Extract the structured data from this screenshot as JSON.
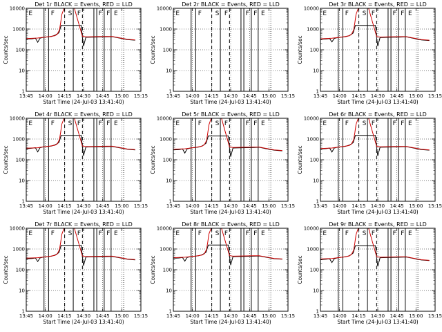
{
  "figure": {
    "shared": {
      "xlabel": "Start Time (24-Jul-03 13:41:40)",
      "ylabel": "Counts/sec",
      "x_ticks": [
        "13:45",
        "14:00",
        "14:15",
        "14:30",
        "14:45",
        "15:00",
        "15:15"
      ],
      "y_ticks": [
        "1",
        "10",
        "100",
        "1000",
        "10000"
      ],
      "ylim": [
        1,
        10000
      ],
      "xlim_minutes_from_start": [
        0,
        100
      ],
      "grid": "dotted"
    },
    "colors": {
      "events": "#000000",
      "lld": "#d00000",
      "background": "#ffffff"
    },
    "event_markers": {
      "solid_lines": [
        15.5,
        19.5,
        41.0,
        59.0,
        61.5,
        68.0,
        74.0
      ],
      "dashed_lines": [
        33.5,
        49.0
      ],
      "dotted_lines": [
        85.0
      ],
      "letters": [
        {
          "x": 2.0,
          "text": "E"
        },
        {
          "x": 21.5,
          "text": "F"
        },
        {
          "x": 36.5,
          "text": "S"
        },
        {
          "x": 44.5,
          "text": "F"
        },
        {
          "x": 63.0,
          "text": "F"
        },
        {
          "x": 70.0,
          "text": "F"
        },
        {
          "x": 76.5,
          "text": "E"
        }
      ]
    }
  },
  "chart_data": [
    {
      "type": "line",
      "detector": "1r",
      "title": "Det 1r BLACK = Events, RED = LLD",
      "xlabel": "Start Time (24-Jul-03 13:41:40)",
      "ylabel": "Counts/sec",
      "yscale": "log",
      "ylim": [
        1,
        10000
      ],
      "x_ticks": [
        "13:45",
        "14:00",
        "14:15",
        "14:30",
        "14:45",
        "15:00",
        "15:15"
      ],
      "series": [
        {
          "name": "Events",
          "color": "#000000",
          "x": [
            0,
            5,
            8,
            10,
            12,
            15,
            19,
            22,
            25,
            27,
            28.5,
            29.5,
            30.5,
            48,
            49,
            50,
            52,
            60,
            70,
            75,
            80,
            88,
            95
          ],
          "y": [
            330,
            340,
            360,
            230,
            360,
            400,
            420,
            440,
            500,
            580,
            650,
            1000,
            1500,
            1500,
            400,
            150,
            400,
            410,
            420,
            430,
            380,
            310,
            290
          ]
        },
        {
          "name": "LLD",
          "color": "#d00000",
          "x": [
            0,
            10,
            15,
            20,
            25,
            27,
            29,
            30,
            31,
            33,
            42,
            49,
            52,
            60,
            70,
            75,
            80,
            88,
            95
          ],
          "y": [
            350,
            370,
            400,
            430,
            480,
            560,
            900,
            2000,
            5000,
            10000,
            10000,
            450,
            420,
            430,
            440,
            440,
            390,
            320,
            300
          ]
        }
      ]
    },
    {
      "type": "line",
      "detector": "2r",
      "title": "Det 2r BLACK = Events, RED = LLD",
      "xlabel": "Start Time (24-Jul-03 13:41:40)",
      "ylabel": "Counts/sec",
      "yscale": "log",
      "ylim": [
        1,
        10000
      ],
      "x_ticks": [
        "13:45",
        "14:00",
        "14:15",
        "14:30",
        "14:45",
        "15:00",
        "15:15"
      ],
      "series": []
    },
    {
      "type": "line",
      "detector": "3r",
      "title": "Det 3r BLACK = Events, RED = LLD",
      "xlabel": "Start Time (24-Jul-03 13:41:40)",
      "ylabel": "Counts/sec",
      "yscale": "log",
      "ylim": [
        1,
        10000
      ],
      "x_ticks": [
        "13:45",
        "14:00",
        "14:15",
        "14:30",
        "14:45",
        "15:00",
        "15:15"
      ],
      "series": [
        {
          "name": "Events",
          "color": "#000000",
          "x": [
            0,
            5,
            8,
            10,
            12,
            15,
            19,
            22,
            25,
            27,
            28.5,
            29.5,
            30.5,
            48,
            49,
            50,
            52,
            60,
            70,
            75,
            80,
            88,
            95
          ],
          "y": [
            320,
            330,
            350,
            240,
            350,
            390,
            410,
            430,
            480,
            560,
            640,
            1000,
            1500,
            1500,
            390,
            150,
            390,
            400,
            410,
            420,
            370,
            300,
            280
          ]
        },
        {
          "name": "LLD",
          "color": "#d00000",
          "x": [
            0,
            10,
            15,
            20,
            25,
            27,
            29,
            30,
            31,
            33,
            42,
            49,
            52,
            60,
            70,
            75,
            80,
            88,
            95
          ],
          "y": [
            340,
            360,
            390,
            420,
            470,
            550,
            900,
            2000,
            5000,
            10000,
            10000,
            440,
            410,
            420,
            430,
            430,
            380,
            310,
            290
          ]
        }
      ]
    },
    {
      "type": "line",
      "detector": "4r",
      "title": "Det 4r BLACK = Events, RED = LLD",
      "xlabel": "Start Time (24-Jul-03 13:41:40)",
      "ylabel": "Counts/sec",
      "yscale": "log",
      "ylim": [
        1,
        10000
      ],
      "x_ticks": [
        "13:45",
        "14:00",
        "14:15",
        "14:30",
        "14:45",
        "15:00",
        "15:15"
      ],
      "series": [
        {
          "name": "Events",
          "color": "#000000",
          "x": [
            0,
            5,
            8,
            10,
            12,
            15,
            19,
            22,
            25,
            27,
            28.5,
            29.5,
            30.5,
            48,
            49,
            50,
            52,
            60,
            70,
            75,
            80,
            88,
            95
          ],
          "y": [
            340,
            360,
            380,
            240,
            380,
            420,
            440,
            460,
            520,
            600,
            680,
            1000,
            1500,
            1500,
            420,
            160,
            410,
            420,
            430,
            440,
            390,
            320,
            300
          ]
        },
        {
          "name": "LLD",
          "color": "#d00000",
          "x": [
            0,
            10,
            15,
            20,
            25,
            27,
            29,
            30,
            31,
            33,
            42,
            49,
            52,
            60,
            70,
            75,
            80,
            88,
            95
          ],
          "y": [
            360,
            380,
            420,
            450,
            500,
            580,
            950,
            2100,
            5200,
            10000,
            10000,
            460,
            430,
            440,
            450,
            450,
            400,
            330,
            310
          ]
        }
      ]
    },
    {
      "type": "line",
      "detector": "5r",
      "title": "Det 5r BLACK = Events, RED = LLD",
      "xlabel": "Start Time (24-Jul-03 13:41:40)",
      "ylabel": "Counts/sec",
      "yscale": "log",
      "ylim": [
        1,
        10000
      ],
      "x_ticks": [
        "13:45",
        "14:00",
        "14:15",
        "14:30",
        "14:45",
        "15:00",
        "15:15"
      ],
      "series": [
        {
          "name": "Events",
          "color": "#000000",
          "x": [
            0,
            5,
            8,
            10,
            12,
            15,
            19,
            22,
            25,
            27,
            28.5,
            29.5,
            30.5,
            48,
            49,
            50,
            52,
            60,
            70,
            75,
            80,
            88,
            95
          ],
          "y": [
            300,
            310,
            330,
            210,
            330,
            370,
            390,
            410,
            460,
            540,
            620,
            950,
            1400,
            1400,
            370,
            140,
            370,
            380,
            390,
            400,
            350,
            290,
            270
          ]
        },
        {
          "name": "LLD",
          "color": "#d00000",
          "x": [
            0,
            10,
            15,
            20,
            25,
            27,
            29,
            30,
            31,
            33,
            42,
            49,
            52,
            60,
            70,
            75,
            80,
            88,
            95
          ],
          "y": [
            320,
            340,
            370,
            400,
            450,
            530,
            850,
            1900,
            4800,
            10000,
            10000,
            420,
            390,
            400,
            410,
            410,
            360,
            300,
            280
          ]
        }
      ]
    },
    {
      "type": "line",
      "detector": "6r",
      "title": "Det 6r BLACK = Events, RED = LLD",
      "xlabel": "Start Time (24-Jul-03 13:41:40)",
      "ylabel": "Counts/sec",
      "yscale": "log",
      "ylim": [
        1,
        10000
      ],
      "x_ticks": [
        "13:45",
        "14:00",
        "14:15",
        "14:30",
        "14:45",
        "15:00",
        "15:15"
      ],
      "series": [
        {
          "name": "Events",
          "color": "#000000",
          "x": [
            0,
            5,
            8,
            10,
            12,
            15,
            19,
            22,
            25,
            27,
            28.5,
            29.5,
            30.5,
            48,
            49,
            50,
            52,
            60,
            70,
            75,
            80,
            88,
            95
          ],
          "y": [
            330,
            345,
            365,
            235,
            365,
            405,
            425,
            445,
            505,
            585,
            660,
            1000,
            1500,
            1500,
            405,
            155,
            400,
            410,
            420,
            430,
            380,
            310,
            290
          ]
        },
        {
          "name": "LLD",
          "color": "#d00000",
          "x": [
            0,
            10,
            15,
            20,
            25,
            27,
            29,
            30,
            31,
            33,
            42,
            49,
            52,
            60,
            70,
            75,
            80,
            88,
            95
          ],
          "y": [
            350,
            370,
            405,
            435,
            485,
            565,
            920,
            2000,
            5000,
            10000,
            10000,
            450,
            420,
            430,
            440,
            440,
            390,
            320,
            300
          ]
        }
      ]
    },
    {
      "type": "line",
      "detector": "7r",
      "title": "Det 7r BLACK = Events, RED = LLD",
      "xlabel": "Start Time (24-Jul-03 13:41:40)",
      "ylabel": "Counts/sec",
      "yscale": "log",
      "ylim": [
        1,
        10000
      ],
      "x_ticks": [
        "13:45",
        "14:00",
        "14:15",
        "14:30",
        "14:45",
        "15:00",
        "15:15"
      ],
      "series": [
        {
          "name": "Events",
          "color": "#000000",
          "x": [
            0,
            5,
            8,
            10,
            12,
            15,
            19,
            22,
            25,
            27,
            28.5,
            29.5,
            30.5,
            48,
            49,
            50,
            52,
            60,
            70,
            75,
            80,
            88,
            95
          ],
          "y": [
            340,
            350,
            370,
            250,
            370,
            410,
            430,
            450,
            510,
            590,
            670,
            1000,
            1500,
            1500,
            410,
            160,
            410,
            420,
            430,
            440,
            390,
            320,
            300
          ]
        },
        {
          "name": "LLD",
          "color": "#d00000",
          "x": [
            0,
            10,
            15,
            20,
            25,
            27,
            29,
            30,
            31,
            33,
            42,
            49,
            52,
            60,
            70,
            75,
            80,
            88,
            95
          ],
          "y": [
            360,
            380,
            410,
            440,
            490,
            570,
            930,
            2050,
            5100,
            10000,
            10000,
            460,
            430,
            440,
            450,
            450,
            400,
            330,
            310
          ]
        }
      ]
    },
    {
      "type": "line",
      "detector": "8r",
      "title": "Det 8r BLACK = Events, RED = LLD",
      "xlabel": "Start Time (24-Jul-03 13:41:40)",
      "ylabel": "Counts/sec",
      "yscale": "log",
      "ylim": [
        1,
        10000
      ],
      "x_ticks": [
        "13:45",
        "14:00",
        "14:15",
        "14:30",
        "14:45",
        "15:00",
        "15:15"
      ],
      "series": [
        {
          "name": "Events",
          "color": "#000000",
          "x": [
            0,
            5,
            8,
            10,
            12,
            15,
            19,
            22,
            25,
            27,
            28.5,
            29.5,
            30.5,
            48,
            49,
            50,
            52,
            60,
            70,
            75,
            80,
            88,
            95
          ],
          "y": [
            360,
            370,
            390,
            260,
            390,
            430,
            450,
            470,
            530,
            610,
            690,
            1050,
            1550,
            1550,
            430,
            170,
            430,
            440,
            450,
            460,
            410,
            340,
            320
          ]
        },
        {
          "name": "LLD",
          "color": "#d00000",
          "x": [
            0,
            10,
            15,
            20,
            25,
            27,
            29,
            30,
            31,
            33,
            42,
            49,
            52,
            60,
            70,
            75,
            80,
            88,
            95
          ],
          "y": [
            380,
            400,
            430,
            460,
            510,
            590,
            960,
            2100,
            5300,
            10000,
            10000,
            480,
            450,
            460,
            470,
            470,
            420,
            350,
            330
          ]
        }
      ]
    },
    {
      "type": "line",
      "detector": "9r",
      "title": "Det 9r BLACK = Events, RED = LLD",
      "xlabel": "Start Time (24-Jul-03 13:41:40)",
      "ylabel": "Counts/sec",
      "yscale": "log",
      "ylim": [
        1,
        10000
      ],
      "x_ticks": [
        "13:45",
        "14:00",
        "14:15",
        "14:30",
        "14:45",
        "15:00",
        "15:15"
      ],
      "series": [
        {
          "name": "Events",
          "color": "#000000",
          "x": [
            0,
            5,
            8,
            10,
            12,
            15,
            19,
            22,
            25,
            27,
            28.5,
            29.5,
            30.5,
            48,
            49,
            50,
            52,
            60,
            70,
            75,
            80,
            88,
            95
          ],
          "y": [
            310,
            320,
            340,
            220,
            340,
            380,
            400,
            420,
            470,
            550,
            630,
            980,
            1450,
            1450,
            380,
            145,
            380,
            390,
            400,
            410,
            360,
            295,
            275
          ]
        },
        {
          "name": "LLD",
          "color": "#d00000",
          "x": [
            0,
            10,
            15,
            20,
            25,
            27,
            29,
            30,
            31,
            33,
            42,
            49,
            52,
            60,
            70,
            75,
            80,
            88,
            95
          ],
          "y": [
            330,
            350,
            380,
            410,
            460,
            540,
            880,
            1950,
            4900,
            10000,
            10000,
            430,
            400,
            410,
            420,
            420,
            370,
            305,
            285
          ]
        }
      ]
    }
  ]
}
